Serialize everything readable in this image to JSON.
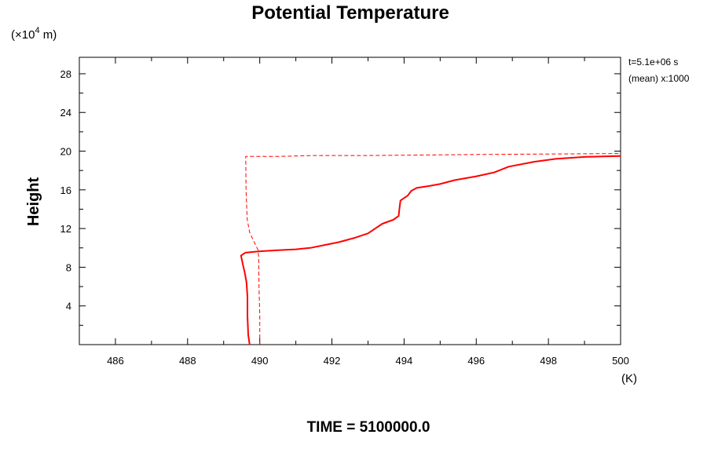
{
  "chart_data": {
    "type": "line",
    "title": "Potential Temperature",
    "ylabel": "Height",
    "y_scale_label": {
      "prefix": "(×10",
      "exponent": "4",
      "suffix": " m)"
    },
    "x_unit_label": "(K)",
    "xlim": [
      485,
      500
    ],
    "ylim": [
      0,
      29.7
    ],
    "x_ticks": [
      486,
      488,
      490,
      492,
      494,
      496,
      498,
      500
    ],
    "y_ticks": [
      4,
      8,
      12,
      16,
      20,
      24,
      28
    ],
    "annotations": [
      "t=5.1e+06 s",
      "(mean) x:1000"
    ],
    "footer": "TIME = 5100000.0",
    "color": "#ff0000",
    "series": [
      {
        "style": "solid",
        "points": [
          [
            489.72,
            0.0
          ],
          [
            489.68,
            1.0
          ],
          [
            489.66,
            3.0
          ],
          [
            489.66,
            5.0
          ],
          [
            489.63,
            6.5
          ],
          [
            489.58,
            7.5
          ],
          [
            489.52,
            8.5
          ],
          [
            489.48,
            9.2
          ],
          [
            489.6,
            9.5
          ],
          [
            490.0,
            9.65
          ],
          [
            490.5,
            9.75
          ],
          [
            491.0,
            9.85
          ],
          [
            491.4,
            10.0
          ],
          [
            491.8,
            10.3
          ],
          [
            492.2,
            10.6
          ],
          [
            492.6,
            11.0
          ],
          [
            493.0,
            11.5
          ],
          [
            493.2,
            12.0
          ],
          [
            493.4,
            12.5
          ],
          [
            493.7,
            12.9
          ],
          [
            493.85,
            13.3
          ],
          [
            493.87,
            14.0
          ],
          [
            493.9,
            14.9
          ],
          [
            494.1,
            15.4
          ],
          [
            494.2,
            15.9
          ],
          [
            494.35,
            16.2
          ],
          [
            494.7,
            16.4
          ],
          [
            495.0,
            16.6
          ],
          [
            495.4,
            17.0
          ],
          [
            496.0,
            17.4
          ],
          [
            496.5,
            17.8
          ],
          [
            496.9,
            18.4
          ],
          [
            497.6,
            18.9
          ],
          [
            498.2,
            19.2
          ],
          [
            499.0,
            19.4
          ],
          [
            500.0,
            19.5
          ]
        ]
      },
      {
        "style": "dashed",
        "points": [
          [
            490.0,
            0.0
          ],
          [
            490.0,
            3.0
          ],
          [
            489.98,
            6.0
          ],
          [
            489.97,
            9.0
          ],
          [
            489.95,
            9.8
          ],
          [
            489.82,
            10.8
          ],
          [
            489.72,
            11.6
          ],
          [
            489.65,
            13.0
          ],
          [
            489.62,
            16.0
          ],
          [
            489.61,
            19.45
          ],
          [
            490.5,
            19.45
          ],
          [
            491.5,
            19.55
          ],
          [
            493.0,
            19.55
          ],
          [
            494.5,
            19.6
          ],
          [
            496.0,
            19.65
          ],
          [
            498.0,
            19.7
          ],
          [
            500.0,
            19.75
          ]
        ]
      }
    ]
  }
}
